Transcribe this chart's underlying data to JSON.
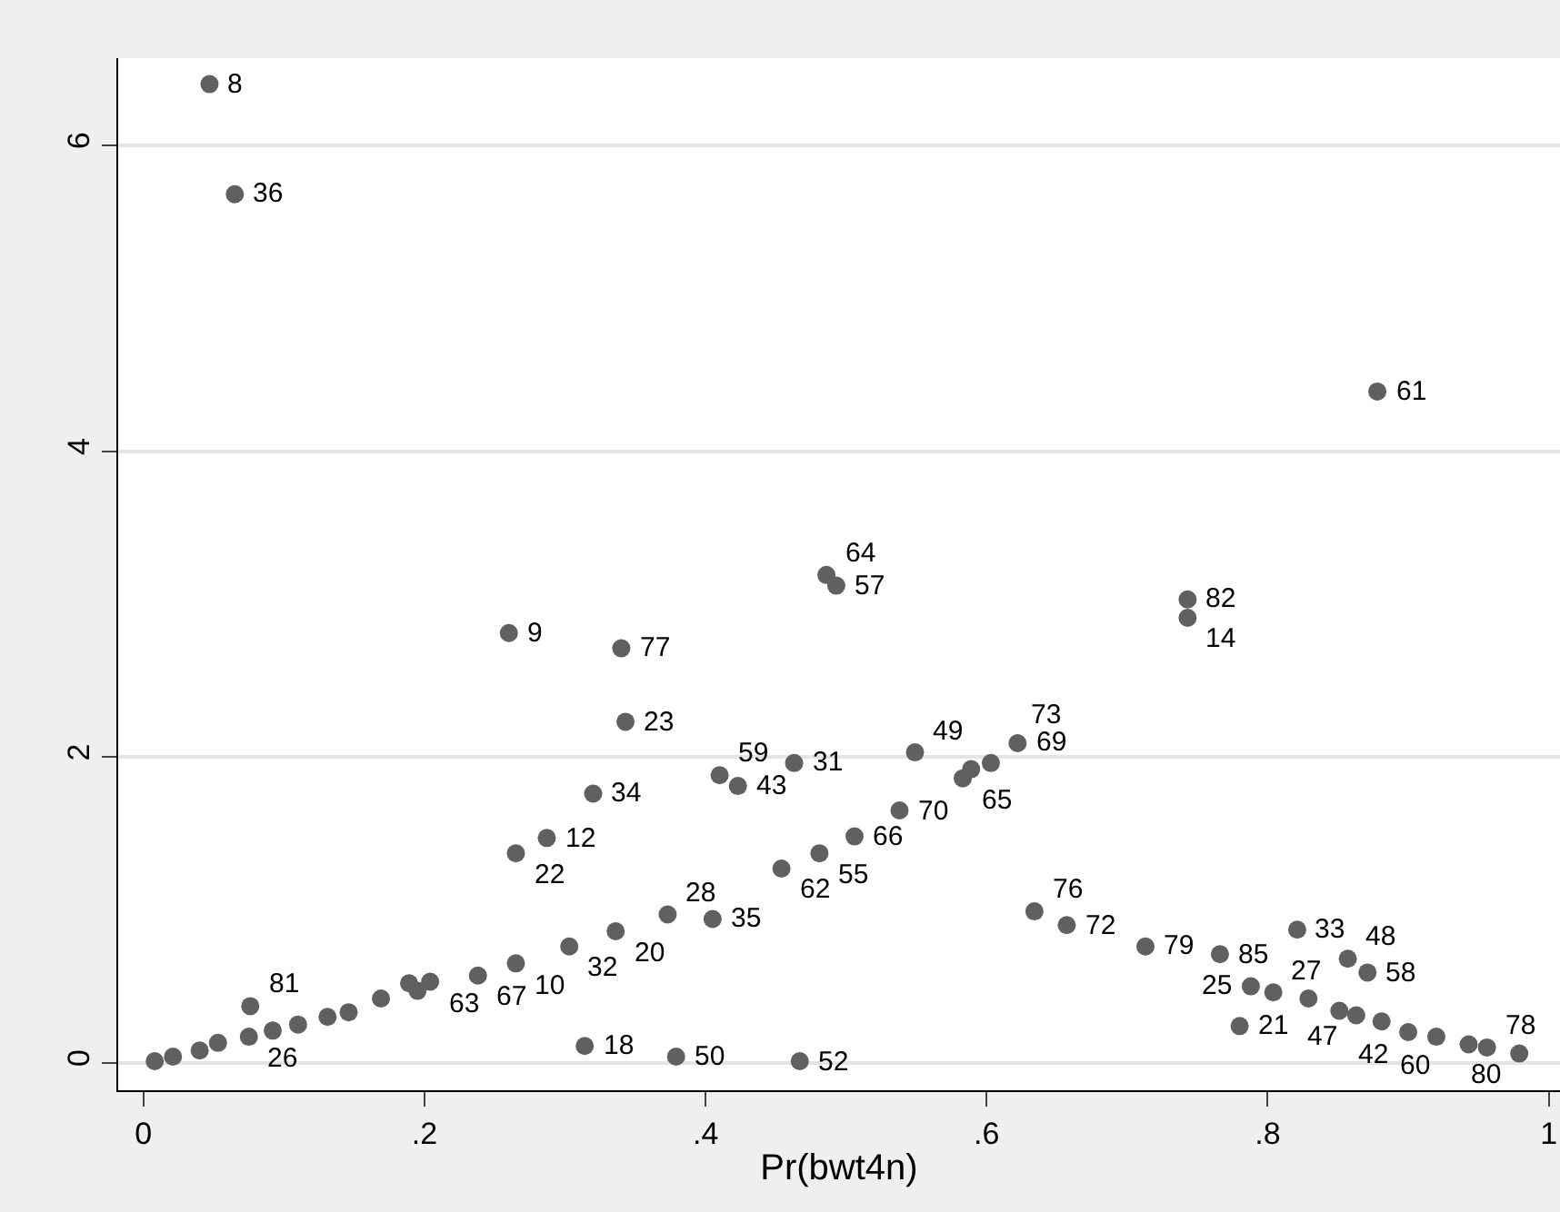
{
  "chart_data": {
    "type": "scatter",
    "xlabel": "Pr(bwt4n)",
    "xlim": [
      -0.018,
      1.008
    ],
    "ylim": [
      -0.18,
      6.57
    ],
    "xticks": [
      0,
      {
        "value": 0.2,
        "label": ".2"
      },
      {
        "value": 0.4,
        "label": ".4"
      },
      {
        "value": 0.6,
        "label": ".6"
      },
      {
        "value": 0.8,
        "label": ".8"
      },
      1
    ],
    "yticks": [
      0,
      2,
      4,
      6
    ],
    "grid": "y",
    "marker": "circle",
    "legend": false,
    "series": [
      {
        "color": "#606060",
        "x": [
          0.047,
          0.065,
          0.878,
          0.486,
          0.493,
          0.743,
          0.743,
          0.26,
          0.34,
          0.343,
          0.463,
          0.41,
          0.423,
          0.32,
          0.549,
          0.622,
          0.583,
          0.589,
          0.603,
          0.538,
          0.506,
          0.481,
          0.454,
          0.287,
          0.265,
          0.373,
          0.405,
          0.336,
          0.303,
          0.265,
          0.634,
          0.657,
          0.713,
          0.766,
          0.821,
          0.857,
          0.871,
          0.78,
          0.314,
          0.379,
          0.467,
          0.076,
          0.788,
          0.804,
          0.829,
          0.851,
          0.863,
          0.881,
          0.9,
          0.92,
          0.943,
          0.956,
          0.979,
          0.189,
          0.204,
          0.238,
          0.195,
          0.169,
          0.146,
          0.131,
          0.11,
          0.092,
          0.075,
          0.053,
          0.04,
          0.021,
          0.008
        ],
        "values": [
          6.4,
          5.68,
          4.39,
          3.19,
          3.12,
          3.03,
          2.91,
          2.81,
          2.71,
          2.23,
          1.96,
          1.88,
          1.81,
          1.76,
          2.03,
          2.09,
          1.86,
          1.92,
          1.96,
          1.65,
          1.48,
          1.37,
          1.27,
          1.47,
          1.37,
          0.97,
          0.94,
          0.86,
          0.76,
          0.65,
          0.99,
          0.9,
          0.76,
          0.71,
          0.87,
          0.68,
          0.59,
          0.24,
          0.11,
          0.04,
          0.01,
          0.37,
          0.5,
          0.46,
          0.42,
          0.34,
          0.31,
          0.27,
          0.2,
          0.17,
          0.12,
          0.1,
          0.06,
          0.52,
          0.53,
          0.57,
          0.47,
          0.42,
          0.33,
          0.3,
          0.25,
          0.21,
          0.17,
          0.13,
          0.08,
          0.04,
          0.01
        ]
      }
    ],
    "annotations": [
      {
        "text": "8",
        "x": 0.047,
        "y": 6.4
      },
      {
        "text": "36",
        "x": 0.065,
        "y": 5.68
      },
      {
        "text": "61",
        "x": 0.878,
        "y": 4.39
      },
      {
        "text": "64",
        "x": 0.486,
        "y": 3.19
      },
      {
        "text": "57",
        "x": 0.493,
        "y": 3.12
      },
      {
        "text": "82",
        "x": 0.743,
        "y": 3.03
      },
      {
        "text": "14",
        "x": 0.743,
        "y": 2.91
      },
      {
        "text": "9",
        "x": 0.26,
        "y": 2.81
      },
      {
        "text": "77",
        "x": 0.34,
        "y": 2.71
      },
      {
        "text": "23",
        "x": 0.343,
        "y": 2.23
      },
      {
        "text": "31",
        "x": 0.463,
        "y": 1.96
      },
      {
        "text": "59",
        "x": 0.41,
        "y": 1.88
      },
      {
        "text": "43",
        "x": 0.423,
        "y": 1.81
      },
      {
        "text": "34",
        "x": 0.32,
        "y": 1.76
      },
      {
        "text": "49",
        "x": 0.549,
        "y": 2.03
      },
      {
        "text": "69",
        "x": 0.622,
        "y": 2.09
      },
      {
        "text": "65",
        "x": 0.583,
        "y": 1.86
      },
      {
        "text": "73",
        "x": 0.603,
        "y": 1.96
      },
      {
        "text": "70",
        "x": 0.538,
        "y": 1.65
      },
      {
        "text": "66",
        "x": 0.506,
        "y": 1.48
      },
      {
        "text": "55",
        "x": 0.481,
        "y": 1.37
      },
      {
        "text": "62",
        "x": 0.454,
        "y": 1.27
      },
      {
        "text": "12",
        "x": 0.287,
        "y": 1.47
      },
      {
        "text": "22",
        "x": 0.265,
        "y": 1.37
      },
      {
        "text": "28",
        "x": 0.373,
        "y": 0.97
      },
      {
        "text": "35",
        "x": 0.405,
        "y": 0.94
      },
      {
        "text": "20",
        "x": 0.336,
        "y": 0.86
      },
      {
        "text": "32",
        "x": 0.303,
        "y": 0.76
      },
      {
        "text": "10",
        "x": 0.265,
        "y": 0.65
      },
      {
        "text": "76",
        "x": 0.634,
        "y": 0.99
      },
      {
        "text": "72",
        "x": 0.657,
        "y": 0.9
      },
      {
        "text": "79",
        "x": 0.713,
        "y": 0.76
      },
      {
        "text": "85",
        "x": 0.766,
        "y": 0.71
      },
      {
        "text": "33",
        "x": 0.821,
        "y": 0.87
      },
      {
        "text": "48",
        "x": 0.857,
        "y": 0.68
      },
      {
        "text": "58",
        "x": 0.871,
        "y": 0.59
      },
      {
        "text": "21",
        "x": 0.78,
        "y": 0.24
      },
      {
        "text": "18",
        "x": 0.314,
        "y": 0.11
      },
      {
        "text": "50",
        "x": 0.379,
        "y": 0.04
      },
      {
        "text": "52",
        "x": 0.467,
        "y": 0.01
      },
      {
        "text": "81",
        "x": 0.076,
        "y": 0.37
      },
      {
        "text": "25",
        "x": 0.788,
        "y": 0.5
      },
      {
        "text": "27",
        "x": 0.804,
        "y": 0.46
      },
      {
        "text": "42",
        "x": 0.851,
        "y": 0.34
      },
      {
        "text": "47",
        "x": 0.863,
        "y": 0.31
      },
      {
        "text": "60",
        "x": 0.881,
        "y": 0.27
      },
      {
        "text": "78",
        "x": 0.956,
        "y": 0.1
      },
      {
        "text": "80",
        "x": 0.979,
        "y": 0.06
      },
      {
        "text": "63",
        "x": 0.204,
        "y": 0.53
      },
      {
        "text": "67",
        "x": 0.238,
        "y": 0.57
      },
      {
        "text": "26",
        "x": 0.075,
        "y": 0.17
      }
    ]
  }
}
